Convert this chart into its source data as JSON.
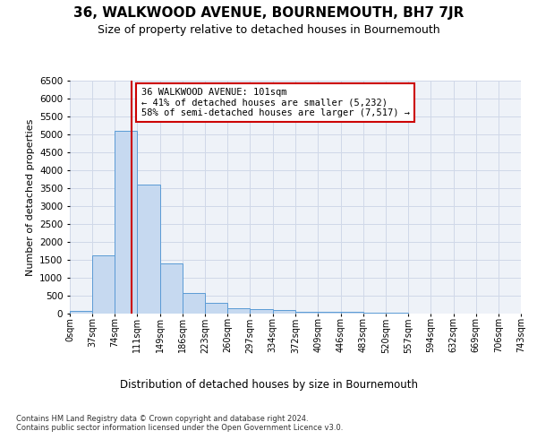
{
  "title": "36, WALKWOOD AVENUE, BOURNEMOUTH, BH7 7JR",
  "subtitle": "Size of property relative to detached houses in Bournemouth",
  "xlabel": "Distribution of detached houses by size in Bournemouth",
  "ylabel": "Number of detached properties",
  "bin_edges": [
    0,
    37,
    74,
    111,
    149,
    186,
    223,
    260,
    297,
    334,
    372,
    409,
    446,
    483,
    520,
    557,
    594,
    632,
    669,
    706,
    743
  ],
  "bar_heights": [
    75,
    1630,
    5100,
    3600,
    1400,
    580,
    300,
    160,
    120,
    95,
    60,
    40,
    50,
    20,
    15,
    10,
    8,
    5,
    5,
    5
  ],
  "bar_color": "#c6d9f0",
  "bar_edgecolor": "#5b9bd5",
  "property_line_x": 101,
  "annotation_text": "36 WALKWOOD AVENUE: 101sqm\n← 41% of detached houses are smaller (5,232)\n58% of semi-detached houses are larger (7,517) →",
  "annotation_box_color": "#ffffff",
  "annotation_box_edgecolor": "#cc0000",
  "annotation_text_fontsize": 7.5,
  "vline_color": "#cc0000",
  "ylim": [
    0,
    6500
  ],
  "yticks": [
    0,
    500,
    1000,
    1500,
    2000,
    2500,
    3000,
    3500,
    4000,
    4500,
    5000,
    5500,
    6000,
    6500
  ],
  "grid_color": "#d0d8e8",
  "background_color": "#eef2f8",
  "footer_text": "Contains HM Land Registry data © Crown copyright and database right 2024.\nContains public sector information licensed under the Open Government Licence v3.0.",
  "title_fontsize": 11,
  "subtitle_fontsize": 9,
  "xlabel_fontsize": 8.5,
  "ylabel_fontsize": 8,
  "tick_fontsize": 7,
  "ytick_fontsize": 7.5
}
